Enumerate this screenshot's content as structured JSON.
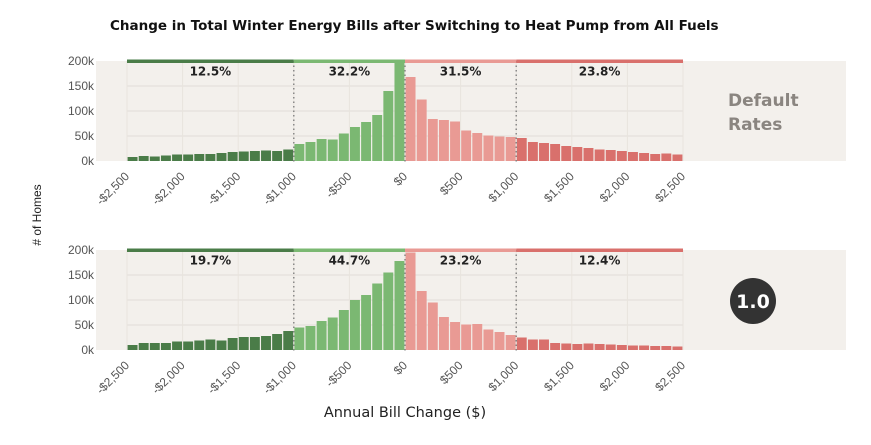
{
  "chart_data": {
    "type": "bar",
    "title": "Change in Total Winter Energy Bills after Switching to Heat Pump from All Fuels",
    "xlabel": "Annual Bill Change ($)",
    "ylabel": "# of Homes",
    "x_range": [
      -2500,
      2500
    ],
    "bin_width": 100,
    "x_ticks": [
      -2500,
      -2000,
      -1500,
      -1000,
      -500,
      0,
      500,
      1000,
      1500,
      2000,
      2500
    ],
    "x_tick_labels": [
      "-$2,500",
      "-$2,000",
      "-$1,500",
      "-$1,000",
      "-$500",
      "$0",
      "$500",
      "$1,000",
      "$1,500",
      "$2,000",
      "$2,500"
    ],
    "y_ticks": [
      0,
      50000,
      100000,
      150000,
      200000
    ],
    "y_tick_labels": [
      "0k",
      "50k",
      "100k",
      "150k",
      "200k"
    ],
    "ylim": [
      0,
      200000
    ],
    "segment_boundaries": [
      -2500,
      -1000,
      0,
      1000,
      2500
    ],
    "segment_colors": [
      "#4a7c48",
      "#7bb872",
      "#e99a94",
      "#d9706c"
    ],
    "grid": true,
    "panels": [
      {
        "facet_label": "Default\nRates",
        "facet_style": "text",
        "segment_percents": [
          "12.5%",
          "32.2%",
          "31.5%",
          "23.8%"
        ],
        "values": [
          8000,
          10000,
          9000,
          11000,
          13000,
          13000,
          14000,
          14000,
          16000,
          18000,
          19000,
          20000,
          21000,
          20000,
          23000,
          34000,
          38000,
          44000,
          43000,
          55000,
          68000,
          78000,
          92000,
          140000,
          200000,
          168000,
          123000,
          84000,
          82000,
          79000,
          61000,
          56000,
          51000,
          49000,
          48000,
          46000,
          38000,
          36000,
          34000,
          30000,
          28000,
          26000,
          23000,
          22000,
          20000,
          18000,
          16000,
          14000,
          15000,
          13000
        ]
      },
      {
        "facet_label": "1.0",
        "facet_style": "badge",
        "segment_percents": [
          "19.7%",
          "44.7%",
          "23.2%",
          "12.4%"
        ],
        "values": [
          10000,
          14000,
          14000,
          14000,
          17000,
          17000,
          19000,
          21000,
          19000,
          24000,
          26000,
          26000,
          28000,
          32000,
          38000,
          45000,
          48000,
          58000,
          65000,
          80000,
          100000,
          110000,
          133000,
          155000,
          178000,
          195000,
          118000,
          95000,
          66000,
          56000,
          51000,
          52000,
          41000,
          36000,
          30000,
          25000,
          21000,
          21000,
          14000,
          13000,
          12000,
          13000,
          12000,
          11000,
          10000,
          9000,
          9000,
          8000,
          8000,
          7000
        ]
      }
    ]
  }
}
